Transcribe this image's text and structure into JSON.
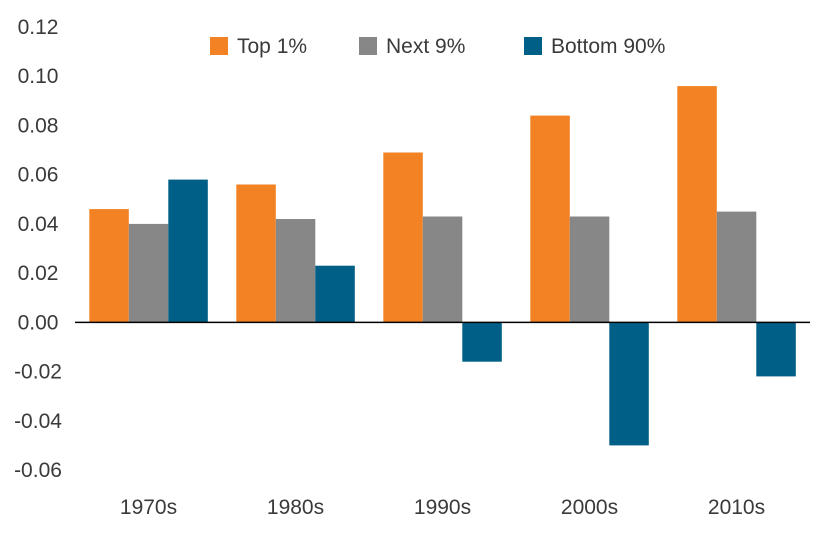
{
  "chart_data": {
    "type": "bar",
    "title": "",
    "xlabel": "",
    "ylabel": "",
    "categories": [
      "1970s",
      "1980s",
      "1990s",
      "2000s",
      "2010s"
    ],
    "series": [
      {
        "name": "Top 1%",
        "color": "#f28223",
        "values": [
          0.046,
          0.056,
          0.069,
          0.084,
          0.096
        ]
      },
      {
        "name": "Next 9%",
        "color": "#878787",
        "values": [
          0.04,
          0.042,
          0.043,
          0.043,
          0.045
        ]
      },
      {
        "name": "Bottom 90%",
        "color": "#005f87",
        "values": [
          0.058,
          0.023,
          -0.016,
          -0.05,
          -0.022
        ]
      }
    ],
    "ylim": [
      -0.06,
      0.12
    ],
    "yticks": [
      "0.12",
      "0.10",
      "0.08",
      "0.06",
      "0.04",
      "0.02",
      "0.00",
      "-0.02",
      "-0.04",
      "-0.06"
    ],
    "grid": false,
    "legend_position": "top"
  }
}
